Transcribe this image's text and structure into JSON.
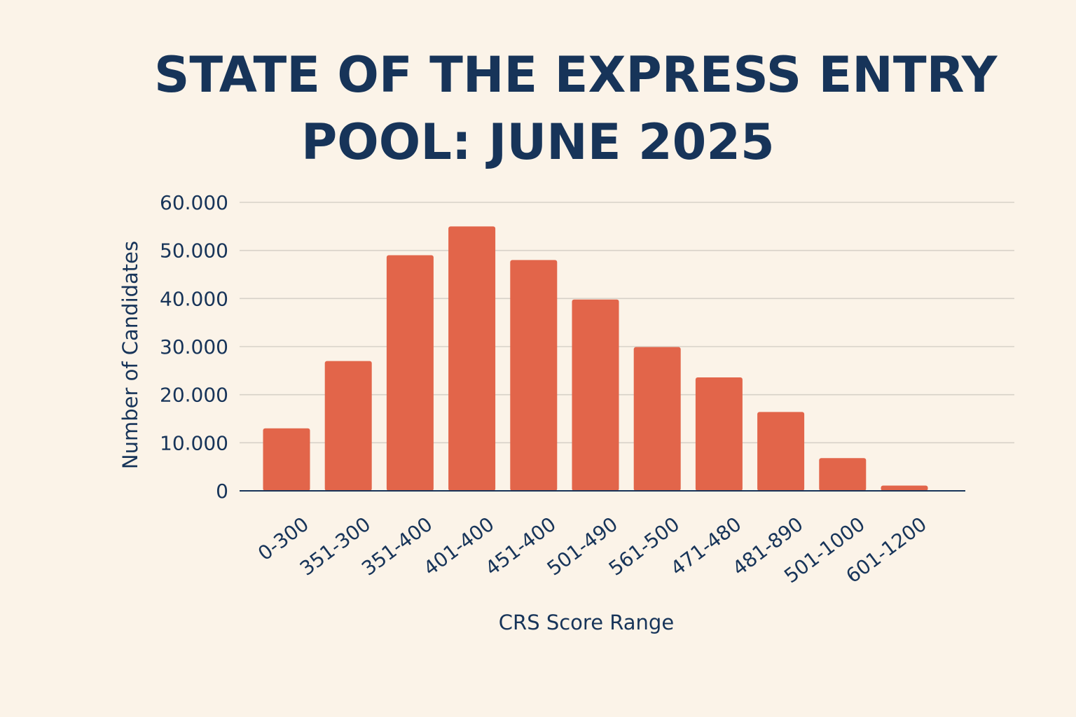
{
  "page": {
    "title_line1": "STATE OF THE EXPRESS ENTRY",
    "title_line2": "POOL: JUNE 2025"
  },
  "colors": {
    "background": "#fbf3e8",
    "text": "#173459",
    "bar": "#e2654a",
    "grid": "#d7d1c8",
    "axis": "#173459"
  },
  "chart_data": {
    "type": "bar",
    "title": "STATE OF THE EXPRESS ENTRY POOL: JUNE 2025",
    "xlabel": "CRS Score Range",
    "ylabel": "Number of Candidates",
    "categories": [
      "0-300",
      "351-300",
      "351-400",
      "401-400",
      "451-400",
      "501-490",
      "561-500",
      "471-480",
      "481-890",
      "501-1000",
      "601-1200"
    ],
    "values": [
      13000,
      27000,
      49000,
      55000,
      48000,
      39800,
      29900,
      23600,
      16400,
      6800,
      1100
    ],
    "ylim": [
      0,
      60000
    ],
    "yticks": [
      0,
      10000,
      20000,
      30000,
      40000,
      50000,
      60000
    ],
    "ytick_labels": [
      "0",
      "10.000",
      "20.000",
      "30.000",
      "40.000",
      "50.000",
      "60.000"
    ],
    "grid": true
  }
}
